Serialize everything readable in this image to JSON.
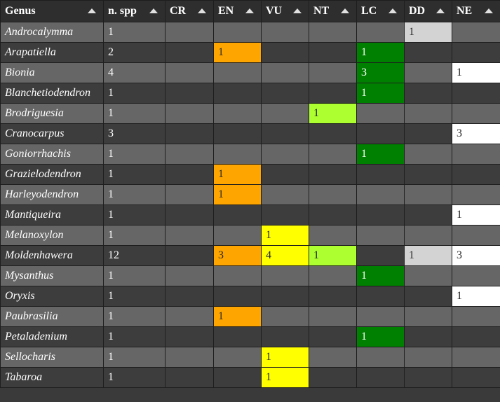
{
  "columns": [
    {
      "key": "genus",
      "label": "Genus"
    },
    {
      "key": "nspp",
      "label": "n. spp"
    },
    {
      "key": "CR",
      "label": "CR"
    },
    {
      "key": "EN",
      "label": "EN"
    },
    {
      "key": "VU",
      "label": "VU"
    },
    {
      "key": "NT",
      "label": "NT"
    },
    {
      "key": "LC",
      "label": "LC"
    },
    {
      "key": "DD",
      "label": "DD"
    },
    {
      "key": "NE",
      "label": "NE"
    }
  ],
  "category_colors": {
    "EN": "#ffa500",
    "VU": "#ffff00",
    "NT": "#adff2f",
    "LC": "#008000",
    "DD": "#d3d3d3",
    "NE": "#ffffff"
  },
  "rows": [
    {
      "genus": "Androcalymma",
      "nspp": "1",
      "CR": "",
      "EN": "",
      "VU": "",
      "NT": "",
      "LC": "",
      "DD": "1",
      "NE": ""
    },
    {
      "genus": "Arapatiella",
      "nspp": "2",
      "CR": "",
      "EN": "1",
      "VU": "",
      "NT": "",
      "LC": "1",
      "DD": "",
      "NE": ""
    },
    {
      "genus": "Bionia",
      "nspp": "4",
      "CR": "",
      "EN": "",
      "VU": "",
      "NT": "",
      "LC": "3",
      "DD": "",
      "NE": "1"
    },
    {
      "genus": "Blanchetiodendron",
      "nspp": "1",
      "CR": "",
      "EN": "",
      "VU": "",
      "NT": "",
      "LC": "1",
      "DD": "",
      "NE": ""
    },
    {
      "genus": "Brodriguesia",
      "nspp": "1",
      "CR": "",
      "EN": "",
      "VU": "",
      "NT": "1",
      "LC": "",
      "DD": "",
      "NE": ""
    },
    {
      "genus": "Cranocarpus",
      "nspp": "3",
      "CR": "",
      "EN": "",
      "VU": "",
      "NT": "",
      "LC": "",
      "DD": "",
      "NE": "3"
    },
    {
      "genus": "Goniorrhachis",
      "nspp": "1",
      "CR": "",
      "EN": "",
      "VU": "",
      "NT": "",
      "LC": "1",
      "DD": "",
      "NE": ""
    },
    {
      "genus": "Grazielodendron",
      "nspp": "1",
      "CR": "",
      "EN": "1",
      "VU": "",
      "NT": "",
      "LC": "",
      "DD": "",
      "NE": ""
    },
    {
      "genus": "Harleyodendron",
      "nspp": "1",
      "CR": "",
      "EN": "1",
      "VU": "",
      "NT": "",
      "LC": "",
      "DD": "",
      "NE": ""
    },
    {
      "genus": "Mantiqueira",
      "nspp": "1",
      "CR": "",
      "EN": "",
      "VU": "",
      "NT": "",
      "LC": "",
      "DD": "",
      "NE": "1"
    },
    {
      "genus": "Melanoxylon",
      "nspp": "1",
      "CR": "",
      "EN": "",
      "VU": "1",
      "NT": "",
      "LC": "",
      "DD": "",
      "NE": ""
    },
    {
      "genus": "Moldenhawera",
      "nspp": "12",
      "CR": "",
      "EN": "3",
      "VU": "4",
      "NT": "1",
      "LC": "",
      "DD": "1",
      "NE": "3"
    },
    {
      "genus": "Mysanthus",
      "nspp": "1",
      "CR": "",
      "EN": "",
      "VU": "",
      "NT": "",
      "LC": "1",
      "DD": "",
      "NE": ""
    },
    {
      "genus": "Oryxis",
      "nspp": "1",
      "CR": "",
      "EN": "",
      "VU": "",
      "NT": "",
      "LC": "",
      "DD": "",
      "NE": "1"
    },
    {
      "genus": "Paubrasilia",
      "nspp": "1",
      "CR": "",
      "EN": "1",
      "VU": "",
      "NT": "",
      "LC": "",
      "DD": "",
      "NE": ""
    },
    {
      "genus": "Petaladenium",
      "nspp": "1",
      "CR": "",
      "EN": "",
      "VU": "",
      "NT": "",
      "LC": "1",
      "DD": "",
      "NE": ""
    },
    {
      "genus": "Sellocharis",
      "nspp": "1",
      "CR": "",
      "EN": "",
      "VU": "1",
      "NT": "",
      "LC": "",
      "DD": "",
      "NE": ""
    },
    {
      "genus": "Tabaroa",
      "nspp": "1",
      "CR": "",
      "EN": "",
      "VU": "1",
      "NT": "",
      "LC": "",
      "DD": "",
      "NE": ""
    }
  ]
}
